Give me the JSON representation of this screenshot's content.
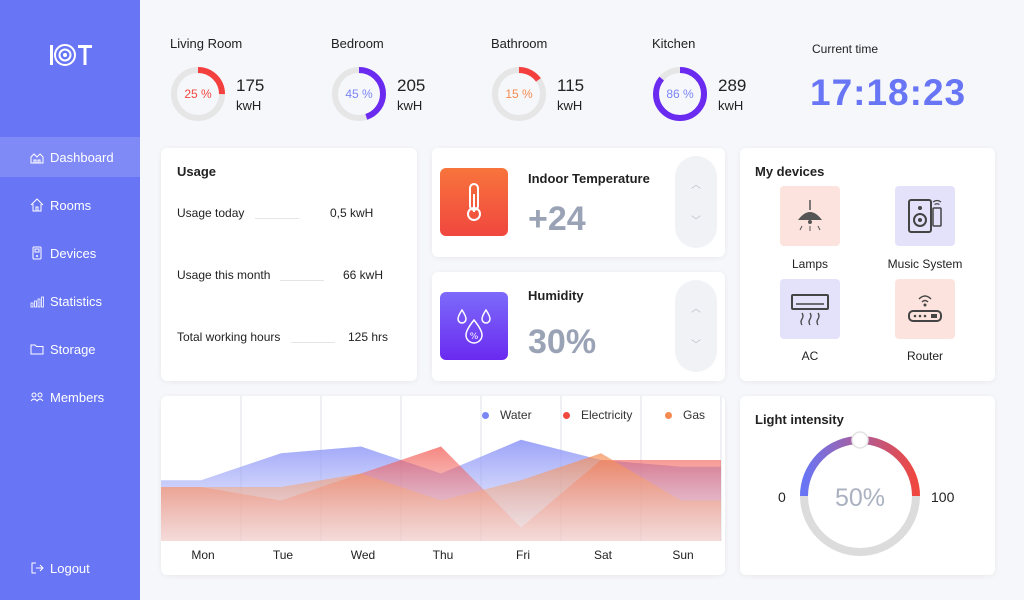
{
  "sidebar": {
    "items": [
      {
        "label": "Dashboard",
        "icon": "dashboard-icon"
      },
      {
        "label": "Rooms",
        "icon": "home-icon"
      },
      {
        "label": "Devices",
        "icon": "device-icon"
      },
      {
        "label": "Statistics",
        "icon": "bar-chart-icon"
      },
      {
        "label": "Storage",
        "icon": "folder-icon"
      },
      {
        "label": "Members",
        "icon": "members-icon"
      }
    ],
    "logout": "Logout"
  },
  "rooms": [
    {
      "name": "Living Room",
      "percent": "25 %",
      "value": "175",
      "unit": "kwH",
      "color": "#f43f3f",
      "fraction": 0.25
    },
    {
      "name": "Bedroom",
      "percent": "45 %",
      "value": "205",
      "unit": "kwH",
      "color": "#6a2af0",
      "fraction": 0.45
    },
    {
      "name": "Bathroom",
      "percent": "15 %",
      "value": "115",
      "unit": "kwH",
      "color": "#f43f3f",
      "fraction": 0.15
    },
    {
      "name": "Kitchen",
      "percent": "86 %",
      "value": "289",
      "unit": "kwH",
      "color": "#6a2af0",
      "fraction": 0.86
    }
  ],
  "time": {
    "label": "Current time",
    "value": "17:18:23"
  },
  "usage": {
    "title": "Usage",
    "rows": [
      {
        "label": "Usage today",
        "value": "0,5 kwH"
      },
      {
        "label": "Usage this month",
        "value": "66 kwH"
      },
      {
        "label": "Total working hours",
        "value": "125 hrs"
      }
    ]
  },
  "temperature": {
    "title": "Indoor Temperature",
    "value": "+24"
  },
  "humidity": {
    "title": "Humidity",
    "value": "30%"
  },
  "devices": {
    "title": "My devices",
    "items": [
      {
        "label": "Lamps",
        "icon": "lamp-icon"
      },
      {
        "label": "Music System",
        "icon": "speaker-icon"
      },
      {
        "label": "AC",
        "icon": "air-conditioner-icon"
      },
      {
        "label": "Router",
        "icon": "router-icon"
      }
    ]
  },
  "chart_data": {
    "type": "area",
    "categories": [
      "Mon",
      "Tue",
      "Wed",
      "Thu",
      "Fri",
      "Sat",
      "Sun"
    ],
    "series": [
      {
        "name": "Water",
        "color": "#7b86f5",
        "values": [
          4.5,
          6.5,
          7,
          5,
          7.5,
          6,
          5.5
        ]
      },
      {
        "name": "Electricity",
        "color": "#f0473f",
        "values": [
          4,
          3,
          5,
          7,
          1,
          6,
          6
        ]
      },
      {
        "name": "Gas",
        "color": "#f48a50",
        "values": [
          4,
          4,
          5,
          3,
          4.5,
          6.5,
          3
        ]
      }
    ],
    "ylim": [
      0,
      10
    ],
    "legend": "top-right"
  },
  "light": {
    "title": "Light intensity",
    "value": "50%",
    "min": "0",
    "max": "100",
    "fraction": 0.5
  },
  "colors": {
    "accent": "#6875f5",
    "sidebar": "#6875f5",
    "red": "#f0473f",
    "purple": "#6a2af0"
  }
}
